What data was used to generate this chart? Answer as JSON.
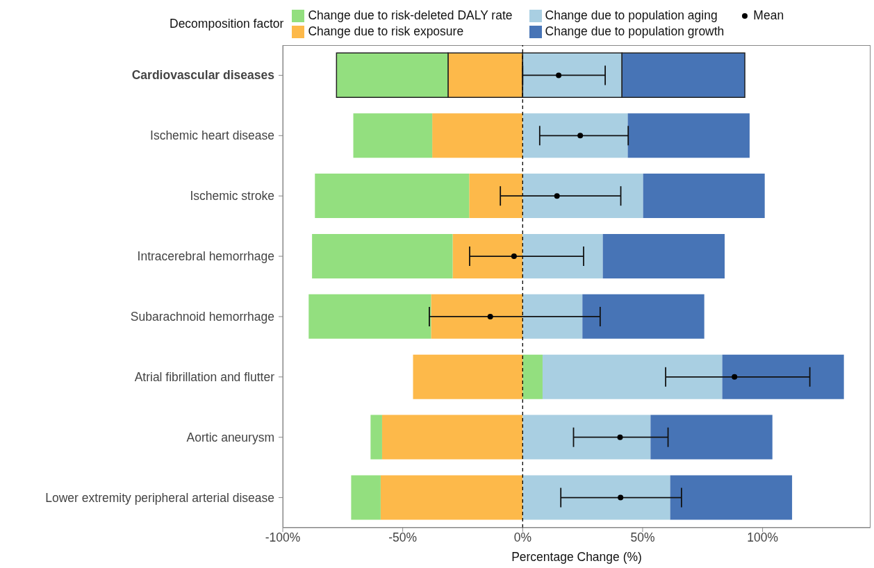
{
  "chart_data": {
    "type": "bar",
    "orientation": "horizontal",
    "stacked": true,
    "xlabel": "Percentage Change (%)",
    "legend_title": "Decomposition factor",
    "legend": "top",
    "grid": false,
    "categories": [
      "Cardiovascular diseases",
      "Ischemic heart disease",
      "Ischemic stroke",
      "Intracerebral hemorrhage",
      "Subarachnoid hemorrhage",
      "Atrial fibrillation and flutter",
      "Aortic aneurysm",
      "Lower extremity peripheral arterial disease"
    ],
    "xlim": [
      -100,
      145
    ],
    "xticks": [
      {
        "value": -100,
        "label": "-100%"
      },
      {
        "value": -50,
        "label": "-50%"
      },
      {
        "value": 0,
        "label": "0%"
      },
      {
        "value": 50,
        "label": "50%"
      },
      {
        "value": 100,
        "label": "100%"
      }
    ],
    "series": [
      {
        "name": "Change due to risk exposure",
        "color": "#fdb94a",
        "values": [
          -31.1,
          -37.7,
          -22.3,
          -29.2,
          -38.2,
          -45.7,
          -58.6,
          -59.2
        ]
      },
      {
        "name": "Change due to risk-deleted DALY rate",
        "color": "#93df7f",
        "values": [
          -46.5,
          -32.9,
          -64.3,
          -58.6,
          -51.0,
          8.3,
          -4.8,
          -12.3
        ]
      },
      {
        "name": "Change due to population aging",
        "color": "#a9cfe2",
        "values": [
          41.4,
          43.8,
          50.2,
          33.4,
          24.9,
          74.9,
          53.3,
          61.5
        ]
      },
      {
        "name": "Change due to population growth",
        "color": "#4774b6",
        "values": [
          51.2,
          50.8,
          50.7,
          50.8,
          50.8,
          50.7,
          50.8,
          50.8
        ]
      },
      {
        "name": "Mean",
        "type": "scatter",
        "color": "#000000",
        "marker": "circle",
        "values": [
          15.0,
          24.0,
          14.3,
          -3.6,
          -13.5,
          88.3,
          40.6,
          40.8
        ],
        "errors": [
          [
            0,
            34.4
          ],
          [
            7.1,
            44.0
          ],
          [
            -9.3,
            40.9
          ],
          [
            -22.1,
            25.4
          ],
          [
            -38.9,
            32.3
          ],
          [
            59.6,
            119.7
          ],
          [
            21.2,
            60.6
          ],
          [
            15.9,
            66.2
          ]
        ]
      }
    ],
    "ref_lines": [
      {
        "axis": "x",
        "value": 0,
        "color": "#000000",
        "line_style": "dashed"
      }
    ]
  }
}
